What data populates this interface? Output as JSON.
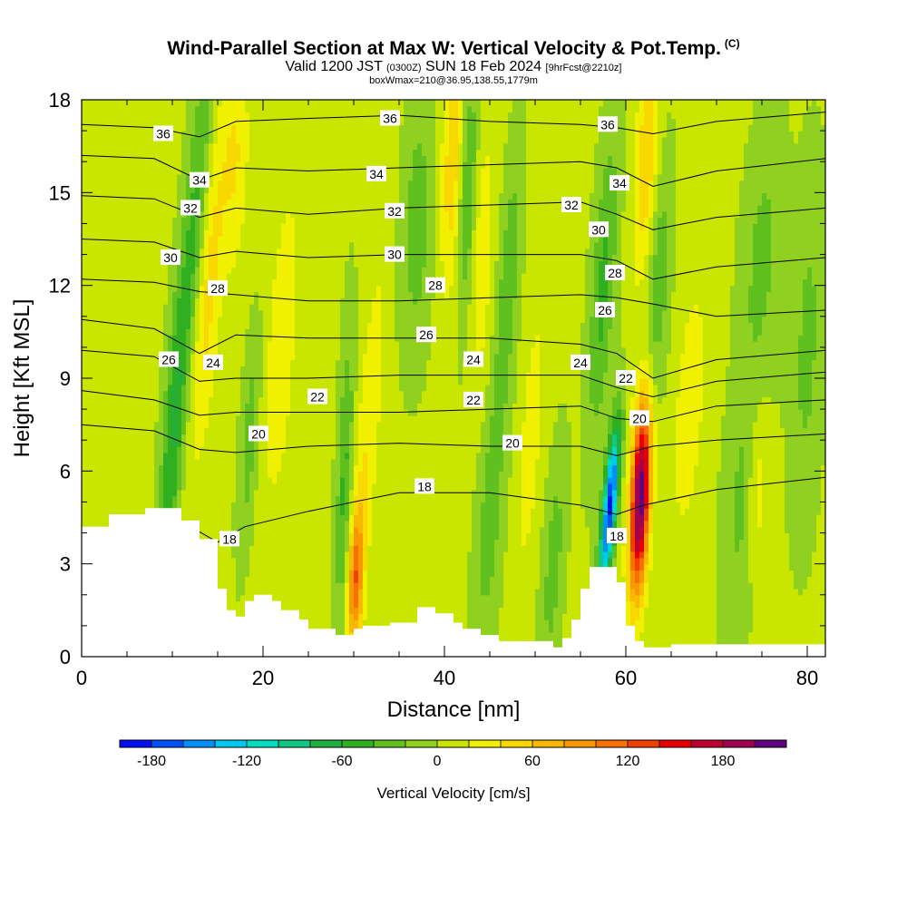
{
  "title": {
    "main": "Wind-Parallel Section at Max W: Vertical Velocity & Pot.Temp.",
    "copyright": "(C)",
    "valid_prefix": "Valid 1200 JST",
    "valid_utc": "(0300Z)",
    "valid_date": "SUN 18 Feb 2024",
    "forecast": "[9hrFcst@2210z]",
    "box_info": "boxWmax=210@36.95,138.55,1779m"
  },
  "chart_data": {
    "type": "heatmap",
    "xlabel": "Distance [nm]",
    "ylabel": "Height [Kft MSL]",
    "xlim": [
      0,
      82
    ],
    "ylim": [
      0,
      18
    ],
    "x_ticks": [
      0,
      20,
      40,
      60,
      80
    ],
    "y_ticks": [
      0,
      3,
      6,
      9,
      12,
      15,
      18
    ],
    "grid": false,
    "colorbar": {
      "title": "Vertical Velocity [cm/s]",
      "placement": "bottom",
      "tick_labels": [
        "-180",
        "-120",
        "-60",
        "0",
        "60",
        "120",
        "180"
      ],
      "tick_values": [
        -180,
        -120,
        -60,
        0,
        60,
        120,
        180
      ],
      "levels": [
        -200,
        -180,
        -160,
        -140,
        -120,
        -100,
        -80,
        -60,
        -40,
        -20,
        0,
        20,
        40,
        60,
        80,
        100,
        120,
        140,
        160,
        180,
        200,
        220
      ],
      "colors": [
        "#0010f0",
        "#0050f8",
        "#0090f8",
        "#00c8f0",
        "#00dcc0",
        "#10c880",
        "#20b040",
        "#30b020",
        "#60c020",
        "#90d020",
        "#c8e600",
        "#f0f000",
        "#f8d800",
        "#f8b800",
        "#f89800",
        "#f87000",
        "#f04000",
        "#e80000",
        "#c00030",
        "#a00050",
        "#600080"
      ]
    },
    "terrain": [
      [
        0,
        4.2
      ],
      [
        3,
        4.2
      ],
      [
        3,
        4.6
      ],
      [
        7,
        4.6
      ],
      [
        7,
        4.8
      ],
      [
        11,
        4.8
      ],
      [
        11,
        4.4
      ],
      [
        13,
        4.4
      ],
      [
        13,
        3.8
      ],
      [
        15,
        3.8
      ],
      [
        15,
        2.2
      ],
      [
        16,
        2.2
      ],
      [
        16,
        1.5
      ],
      [
        17,
        1.5
      ],
      [
        17,
        1.3
      ],
      [
        18,
        1.3
      ],
      [
        18,
        1.8
      ],
      [
        19,
        1.8
      ],
      [
        19,
        2.0
      ],
      [
        21,
        2.0
      ],
      [
        21,
        1.8
      ],
      [
        22,
        1.8
      ],
      [
        22,
        1.5
      ],
      [
        24,
        1.5
      ],
      [
        24,
        1.2
      ],
      [
        25,
        1.2
      ],
      [
        25,
        0.9
      ],
      [
        28,
        0.9
      ],
      [
        28,
        0.7
      ],
      [
        30,
        0.7
      ],
      [
        30,
        0.9
      ],
      [
        31,
        0.9
      ],
      [
        31,
        1.0
      ],
      [
        34,
        1.0
      ],
      [
        34,
        1.1
      ],
      [
        37,
        1.1
      ],
      [
        37,
        1.6
      ],
      [
        39,
        1.6
      ],
      [
        39,
        1.4
      ],
      [
        41,
        1.4
      ],
      [
        41,
        1.1
      ],
      [
        42,
        1.1
      ],
      [
        42,
        0.9
      ],
      [
        44,
        0.9
      ],
      [
        44,
        0.7
      ],
      [
        46,
        0.7
      ],
      [
        46,
        0.5
      ],
      [
        52,
        0.5
      ],
      [
        52,
        0.3
      ],
      [
        53,
        0.3
      ],
      [
        53,
        0.6
      ],
      [
        54,
        0.6
      ],
      [
        54,
        1.2
      ],
      [
        55,
        1.2
      ],
      [
        55,
        2.2
      ],
      [
        56,
        2.2
      ],
      [
        56,
        2.9
      ],
      [
        59,
        2.9
      ],
      [
        59,
        2.4
      ],
      [
        60,
        2.4
      ],
      [
        60,
        1.0
      ],
      [
        61,
        1.0
      ],
      [
        61,
        0.5
      ],
      [
        62,
        0.5
      ],
      [
        62,
        0.3
      ],
      [
        65,
        0.3
      ],
      [
        65,
        0.4
      ],
      [
        82,
        0.4
      ]
    ],
    "w_field": [
      {
        "x": 10,
        "z": 7.0,
        "sx": 0.8,
        "sz": 3.5,
        "value": -60,
        "tilt": 0.2
      },
      {
        "x": 12.5,
        "z": 14,
        "sx": 0.9,
        "sz": 4,
        "value": -50,
        "tilt": 0.25
      },
      {
        "x": 14,
        "z": 12,
        "sx": 1.0,
        "sz": 4,
        "value": 45,
        "tilt": 0.25
      },
      {
        "x": 17,
        "z": 16,
        "sx": 1.0,
        "sz": 2.5,
        "value": 35,
        "tilt": 0.1
      },
      {
        "x": 18.5,
        "z": 7.0,
        "sx": 0.7,
        "sz": 2.5,
        "value": -35,
        "tilt": 0.2
      },
      {
        "x": 22,
        "z": 10,
        "sx": 1.2,
        "sz": 4,
        "value": 30,
        "tilt": 0.2
      },
      {
        "x": 29,
        "z": 5.5,
        "sx": 0.6,
        "sz": 3.5,
        "value": -50,
        "tilt": 0.1
      },
      {
        "x": 30.2,
        "z": 2.5,
        "sx": 0.6,
        "sz": 1.6,
        "value": 100,
        "tilt": 0.1
      },
      {
        "x": 31.5,
        "z": 7.0,
        "sx": 0.9,
        "sz": 4,
        "value": 35,
        "tilt": 0.25
      },
      {
        "x": 37,
        "z": 14,
        "sx": 1.2,
        "sz": 3,
        "value": -35,
        "tilt": 0.1
      },
      {
        "x": 41,
        "z": 16,
        "sx": 0.9,
        "sz": 3,
        "value": 55,
        "tilt": 0.1
      },
      {
        "x": 42.5,
        "z": 15,
        "sx": 0.8,
        "sz": 3,
        "value": -55,
        "tilt": 0.1
      },
      {
        "x": 44,
        "z": 13,
        "sx": 0.9,
        "sz": 3,
        "value": 35,
        "tilt": 0.1
      },
      {
        "x": 45,
        "z": 4.5,
        "sx": 1.0,
        "sz": 3,
        "value": -35,
        "tilt": 0.2
      },
      {
        "x": 47,
        "z": 12,
        "sx": 0.8,
        "sz": 3,
        "value": -40,
        "tilt": 0.2
      },
      {
        "x": 49.5,
        "z": 7.0,
        "sx": 0.8,
        "sz": 3,
        "value": 30,
        "tilt": 0.2
      },
      {
        "x": 52,
        "z": 3.0,
        "sx": 0.8,
        "sz": 2.5,
        "value": -35,
        "tilt": 0.2
      },
      {
        "x": 57.5,
        "z": 12,
        "sx": 0.9,
        "sz": 3.5,
        "value": -50,
        "tilt": 0.2
      },
      {
        "x": 58.2,
        "z": 4.8,
        "sx": 0.55,
        "sz": 1.9,
        "value": -190,
        "tilt": 0.3
      },
      {
        "x": 61.6,
        "z": 5.2,
        "sx": 0.75,
        "sz": 2.2,
        "value": 215,
        "tilt": 0.15
      },
      {
        "x": 62.3,
        "z": 16,
        "sx": 0.9,
        "sz": 2.8,
        "value": 55,
        "tilt": 0.15
      },
      {
        "x": 63.5,
        "z": 12,
        "sx": 0.9,
        "sz": 3,
        "value": -40,
        "tilt": 0.15
      },
      {
        "x": 67,
        "z": 8.0,
        "sx": 1.2,
        "sz": 3,
        "value": 30,
        "tilt": 0.2
      },
      {
        "x": 73,
        "z": 5.0,
        "sx": 1.5,
        "sz": 3,
        "value": -30,
        "tilt": 0.2
      },
      {
        "x": 75,
        "z": 13,
        "sx": 1.5,
        "sz": 3,
        "value": -30,
        "tilt": 0.2
      },
      {
        "x": 74.5,
        "z": 5.5,
        "sx": 0.8,
        "sz": 2,
        "value": 40,
        "tilt": 0.1
      },
      {
        "x": 80,
        "z": 10,
        "sx": 1.2,
        "sz": 4,
        "value": -30,
        "tilt": 0.1
      }
    ],
    "theta_contours": [
      {
        "label": "36",
        "points": [
          [
            0,
            17.2
          ],
          [
            8,
            17.1
          ],
          [
            13,
            16.8
          ],
          [
            17,
            17.3
          ],
          [
            25,
            17.4
          ],
          [
            35,
            17.5
          ],
          [
            45,
            17.3
          ],
          [
            55,
            17.2
          ],
          [
            59,
            17.1
          ],
          [
            63,
            16.9
          ],
          [
            70,
            17.3
          ],
          [
            82,
            17.6
          ]
        ]
      },
      {
        "label": "34",
        "points": [
          [
            0,
            16.2
          ],
          [
            8,
            16.1
          ],
          [
            13,
            15.4
          ],
          [
            17,
            15.8
          ],
          [
            25,
            15.7
          ],
          [
            35,
            15.8
          ],
          [
            45,
            15.9
          ],
          [
            55,
            16.0
          ],
          [
            59,
            15.8
          ],
          [
            63,
            15.2
          ],
          [
            70,
            15.7
          ],
          [
            82,
            16.1
          ]
        ]
      },
      {
        "label": "32",
        "points": [
          [
            0,
            14.9
          ],
          [
            8,
            14.8
          ],
          [
            13,
            14.2
          ],
          [
            17,
            14.5
          ],
          [
            25,
            14.3
          ],
          [
            35,
            14.5
          ],
          [
            45,
            14.6
          ],
          [
            55,
            14.7
          ],
          [
            59,
            14.3
          ],
          [
            63,
            13.8
          ],
          [
            70,
            14.2
          ],
          [
            82,
            14.5
          ]
        ]
      },
      {
        "label": "30",
        "points": [
          [
            0,
            13.5
          ],
          [
            8,
            13.4
          ],
          [
            13,
            12.9
          ],
          [
            17,
            13.1
          ],
          [
            25,
            12.9
          ],
          [
            35,
            13.0
          ],
          [
            45,
            13.0
          ],
          [
            55,
            13.0
          ],
          [
            59,
            12.8
          ],
          [
            63,
            12.2
          ],
          [
            70,
            12.6
          ],
          [
            82,
            12.9
          ]
        ]
      },
      {
        "label": "28",
        "points": [
          [
            0,
            12.2
          ],
          [
            8,
            12.1
          ],
          [
            13,
            11.8
          ],
          [
            17,
            11.7
          ],
          [
            25,
            11.5
          ],
          [
            35,
            11.5
          ],
          [
            45,
            11.6
          ],
          [
            55,
            11.7
          ],
          [
            59,
            11.6
          ],
          [
            63,
            11.4
          ],
          [
            70,
            11.0
          ],
          [
            82,
            11.2
          ]
        ]
      },
      {
        "label": "26",
        "points": [
          [
            0,
            10.9
          ],
          [
            8,
            10.6
          ],
          [
            13,
            9.8
          ],
          [
            17,
            10.4
          ],
          [
            25,
            10.3
          ],
          [
            35,
            10.3
          ],
          [
            45,
            10.3
          ],
          [
            55,
            10.1
          ],
          [
            59,
            9.8
          ],
          [
            63,
            9.0
          ],
          [
            70,
            9.6
          ],
          [
            82,
            9.9
          ]
        ]
      },
      {
        "label": "24",
        "points": [
          [
            0,
            9.9
          ],
          [
            8,
            9.7
          ],
          [
            13,
            8.9
          ],
          [
            17,
            9.0
          ],
          [
            25,
            9.0
          ],
          [
            35,
            9.1
          ],
          [
            45,
            9.1
          ],
          [
            55,
            9.1
          ],
          [
            59,
            8.7
          ],
          [
            63,
            8.4
          ],
          [
            70,
            8.9
          ],
          [
            82,
            9.2
          ]
        ]
      },
      {
        "label": "22",
        "points": [
          [
            0,
            8.6
          ],
          [
            8,
            8.3
          ],
          [
            13,
            7.8
          ],
          [
            17,
            7.9
          ],
          [
            25,
            7.9
          ],
          [
            35,
            7.9
          ],
          [
            45,
            8.0
          ],
          [
            55,
            8.1
          ],
          [
            59,
            7.7
          ],
          [
            63,
            7.6
          ],
          [
            70,
            8.1
          ],
          [
            82,
            8.3
          ]
        ]
      },
      {
        "label": "20",
        "points": [
          [
            0,
            7.5
          ],
          [
            8,
            7.3
          ],
          [
            13,
            6.7
          ],
          [
            17,
            6.6
          ],
          [
            25,
            6.8
          ],
          [
            35,
            6.9
          ],
          [
            45,
            6.8
          ],
          [
            55,
            6.8
          ],
          [
            59,
            6.5
          ],
          [
            63,
            6.8
          ],
          [
            70,
            7.0
          ],
          [
            82,
            7.2
          ]
        ]
      },
      {
        "label": "18",
        "points": [
          [
            12,
            4.2
          ],
          [
            15,
            3.7
          ],
          [
            18,
            4.2
          ],
          [
            25,
            4.7
          ],
          [
            35,
            5.3
          ],
          [
            45,
            5.3
          ],
          [
            55,
            4.9
          ],
          [
            59,
            4.6
          ],
          [
            62,
            4.9
          ],
          [
            70,
            5.4
          ],
          [
            82,
            5.8
          ]
        ]
      }
    ],
    "contour_label_positions": [
      {
        "label": "36",
        "x": 9,
        "z": 16.9
      },
      {
        "label": "36",
        "x": 34,
        "z": 17.4
      },
      {
        "label": "36",
        "x": 58,
        "z": 17.2
      },
      {
        "label": "34",
        "x": 13,
        "z": 15.4
      },
      {
        "label": "34",
        "x": 32.5,
        "z": 15.6
      },
      {
        "label": "34",
        "x": 59.3,
        "z": 15.3
      },
      {
        "label": "32",
        "x": 12,
        "z": 14.5
      },
      {
        "label": "32",
        "x": 34.5,
        "z": 14.4
      },
      {
        "label": "32",
        "x": 54,
        "z": 14.6
      },
      {
        "label": "30",
        "x": 9.8,
        "z": 12.9
      },
      {
        "label": "30",
        "x": 34.5,
        "z": 13.0
      },
      {
        "label": "30",
        "x": 57,
        "z": 13.8
      },
      {
        "label": "28",
        "x": 15,
        "z": 11.9
      },
      {
        "label": "28",
        "x": 39,
        "z": 12.0
      },
      {
        "label": "28",
        "x": 58.8,
        "z": 12.4
      },
      {
        "label": "26",
        "x": 9.6,
        "z": 9.6
      },
      {
        "label": "26",
        "x": 38,
        "z": 10.4
      },
      {
        "label": "26",
        "x": 57.7,
        "z": 11.2
      },
      {
        "label": "24",
        "x": 14.5,
        "z": 9.5
      },
      {
        "label": "24",
        "x": 43.2,
        "z": 9.6
      },
      {
        "label": "24",
        "x": 55,
        "z": 9.5
      },
      {
        "label": "22",
        "x": 26,
        "z": 8.4
      },
      {
        "label": "22",
        "x": 43.2,
        "z": 8.3
      },
      {
        "label": "22",
        "x": 60,
        "z": 9.0
      },
      {
        "label": "20",
        "x": 19.5,
        "z": 7.2
      },
      {
        "label": "20",
        "x": 47.5,
        "z": 6.9
      },
      {
        "label": "20",
        "x": 61.5,
        "z": 7.7
      },
      {
        "label": "18",
        "x": 16.3,
        "z": 3.8
      },
      {
        "label": "18",
        "x": 37.8,
        "z": 5.5
      },
      {
        "label": "18",
        "x": 59,
        "z": 3.9
      }
    ]
  }
}
